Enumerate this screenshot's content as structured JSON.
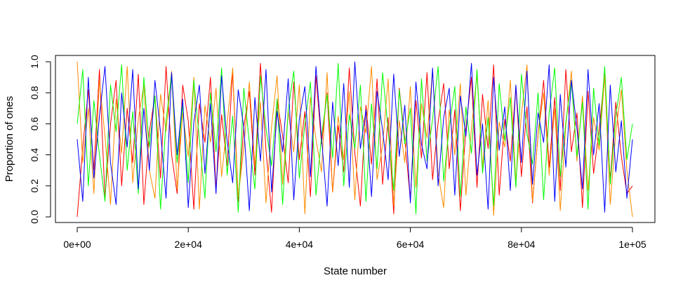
{
  "chart_data": {
    "type": "line",
    "title": "",
    "xlabel": "State number",
    "ylabel": "Proportion of ones",
    "xlim": [
      0,
      100000
    ],
    "ylim": [
      0,
      1
    ],
    "x_ticks": [
      0,
      20000,
      40000,
      60000,
      80000,
      100000
    ],
    "x_tick_labels": [
      "0e+00",
      "2e+04",
      "4e+04",
      "6e+04",
      "8e+04",
      "1e+05"
    ],
    "y_ticks": [
      0,
      0.2,
      0.4,
      0.6,
      0.8,
      1.0
    ],
    "y_tick_labels": [
      "0.0",
      "0.2",
      "0.4",
      "0.6",
      "0.8",
      "1.0"
    ],
    "grid": false,
    "legend": "none",
    "x": [
      0,
      1000,
      2000,
      3000,
      4000,
      5000,
      6000,
      7000,
      8000,
      9000,
      10000,
      11000,
      12000,
      13000,
      14000,
      15000,
      16000,
      17000,
      18000,
      19000,
      20000,
      21000,
      22000,
      23000,
      24000,
      25000,
      26000,
      27000,
      28000,
      29000,
      30000,
      31000,
      32000,
      33000,
      34000,
      35000,
      36000,
      37000,
      38000,
      39000,
      40000,
      41000,
      42000,
      43000,
      44000,
      45000,
      46000,
      47000,
      48000,
      49000,
      50000,
      51000,
      52000,
      53000,
      54000,
      55000,
      56000,
      57000,
      58000,
      59000,
      60000,
      61000,
      62000,
      63000,
      64000,
      65000,
      66000,
      67000,
      68000,
      69000,
      70000,
      71000,
      72000,
      73000,
      74000,
      75000,
      76000,
      77000,
      78000,
      79000,
      80000,
      81000,
      82000,
      83000,
      84000,
      85000,
      86000,
      87000,
      88000,
      89000,
      90000,
      91000,
      92000,
      93000,
      94000,
      95000,
      96000,
      97000,
      98000,
      99000,
      100000
    ],
    "series": [
      {
        "color": "#ff0000",
        "values": [
          0.0,
          0.45,
          0.82,
          0.3,
          0.95,
          0.12,
          0.6,
          0.88,
          0.2,
          0.7,
          0.35,
          0.92,
          0.08,
          0.55,
          0.78,
          0.25,
          0.97,
          0.4,
          0.15,
          0.85,
          0.62,
          0.05,
          0.73,
          0.48,
          0.9,
          0.18,
          0.66,
          0.33,
          0.94,
          0.1,
          0.58,
          0.81,
          0.27,
          0.99,
          0.43,
          0.03,
          0.76,
          0.52,
          0.22,
          0.87,
          0.37,
          0.68,
          0.13,
          0.91,
          0.47,
          0.8,
          0.16,
          0.59,
          0.29,
          0.96,
          0.41,
          0.07,
          0.72,
          0.34,
          0.89,
          0.21,
          0.64,
          0.02,
          0.83,
          0.5,
          0.11,
          0.75,
          0.38,
          0.93,
          0.24,
          0.61,
          0.86,
          0.31,
          0.69,
          0.04,
          0.57,
          0.9,
          0.19,
          0.79,
          0.44,
          0.98,
          0.14,
          0.63,
          0.36,
          0.84,
          0.26,
          0.71,
          0.09,
          0.53,
          0.88,
          0.32,
          0.77,
          0.17,
          0.95,
          0.42,
          0.67,
          0.06,
          0.81,
          0.28,
          0.56,
          0.92,
          0.23,
          0.74,
          0.39,
          0.15,
          0.2
        ]
      },
      {
        "color": "#ff8c00",
        "values": [
          1.0,
          0.35,
          0.7,
          0.15,
          0.88,
          0.52,
          0.08,
          0.76,
          0.41,
          0.97,
          0.22,
          0.63,
          0.85,
          0.3,
          0.12,
          0.79,
          0.55,
          0.94,
          0.18,
          0.67,
          0.39,
          0.9,
          0.05,
          0.72,
          0.48,
          0.83,
          0.26,
          0.6,
          0.96,
          0.13,
          0.44,
          0.87,
          0.33,
          0.74,
          0.09,
          0.58,
          0.91,
          0.21,
          0.68,
          0.42,
          0.85,
          0.02,
          0.77,
          0.5,
          0.29,
          0.93,
          0.16,
          0.65,
          0.37,
          0.81,
          0.11,
          0.71,
          0.54,
          0.97,
          0.24,
          0.46,
          0.89,
          0.07,
          0.62,
          0.35,
          0.84,
          0.19,
          0.73,
          0.51,
          0.95,
          0.28,
          0.06,
          0.69,
          0.4,
          0.86,
          0.14,
          0.57,
          0.92,
          0.32,
          0.75,
          0.01,
          0.61,
          0.45,
          0.88,
          0.23,
          0.66,
          0.98,
          0.1,
          0.53,
          0.8,
          0.27,
          0.7,
          0.04,
          0.59,
          0.94,
          0.36,
          0.78,
          0.17,
          0.64,
          0.43,
          0.91,
          0.08,
          0.55,
          0.82,
          0.3,
          0.0
        ]
      },
      {
        "color": "#00ff00",
        "values": [
          0.6,
          0.95,
          0.2,
          0.75,
          0.4,
          0.1,
          0.85,
          0.55,
          0.98,
          0.3,
          0.68,
          0.15,
          0.9,
          0.45,
          0.78,
          0.05,
          0.62,
          0.92,
          0.35,
          0.72,
          0.22,
          0.88,
          0.5,
          0.12,
          0.8,
          0.42,
          0.96,
          0.27,
          0.65,
          0.03,
          0.83,
          0.48,
          0.18,
          0.91,
          0.57,
          0.33,
          0.76,
          0.08,
          0.69,
          0.94,
          0.25,
          0.6,
          0.87,
          0.14,
          0.52,
          0.79,
          0.38,
          0.99,
          0.2,
          0.66,
          0.44,
          0.85,
          0.1,
          0.73,
          0.31,
          0.93,
          0.56,
          0.17,
          0.82,
          0.47,
          0.7,
          0.02,
          0.89,
          0.36,
          0.63,
          0.97,
          0.23,
          0.58,
          0.84,
          0.13,
          0.71,
          0.41,
          0.95,
          0.28,
          0.64,
          0.07,
          0.86,
          0.49,
          0.77,
          0.19,
          0.92,
          0.54,
          0.34,
          0.8,
          0.11,
          0.67,
          0.96,
          0.26,
          0.61,
          0.88,
          0.39,
          0.74,
          0.05,
          0.83,
          0.46,
          0.97,
          0.21,
          0.65,
          0.9,
          0.37,
          0.6
        ]
      },
      {
        "color": "#0000ff",
        "values": [
          0.5,
          0.1,
          0.9,
          0.25,
          0.65,
          0.97,
          0.35,
          0.08,
          0.8,
          0.45,
          0.95,
          0.18,
          0.7,
          0.3,
          0.88,
          0.55,
          0.12,
          0.93,
          0.4,
          0.76,
          0.06,
          0.61,
          0.85,
          0.28,
          0.73,
          0.15,
          0.91,
          0.49,
          0.22,
          0.82,
          0.58,
          0.04,
          0.77,
          0.36,
          0.95,
          0.16,
          0.68,
          0.42,
          0.89,
          0.11,
          0.63,
          0.84,
          0.26,
          0.97,
          0.51,
          0.07,
          0.74,
          0.33,
          0.86,
          0.19,
          1.0,
          0.44,
          0.69,
          0.13,
          0.81,
          0.56,
          0.24,
          0.92,
          0.39,
          0.72,
          0.09,
          0.87,
          0.47,
          0.31,
          0.96,
          0.2,
          0.64,
          0.83,
          0.14,
          0.78,
          0.52,
          0.99,
          0.27,
          0.6,
          0.05,
          0.9,
          0.43,
          0.71,
          0.17,
          0.85,
          0.35,
          0.94,
          0.21,
          0.67,
          0.48,
          0.98,
          0.1,
          0.79,
          0.32,
          0.88,
          0.57,
          0.18,
          0.95,
          0.4,
          0.73,
          0.03,
          0.85,
          0.29,
          0.62,
          0.12,
          0.5
        ]
      }
    ]
  }
}
